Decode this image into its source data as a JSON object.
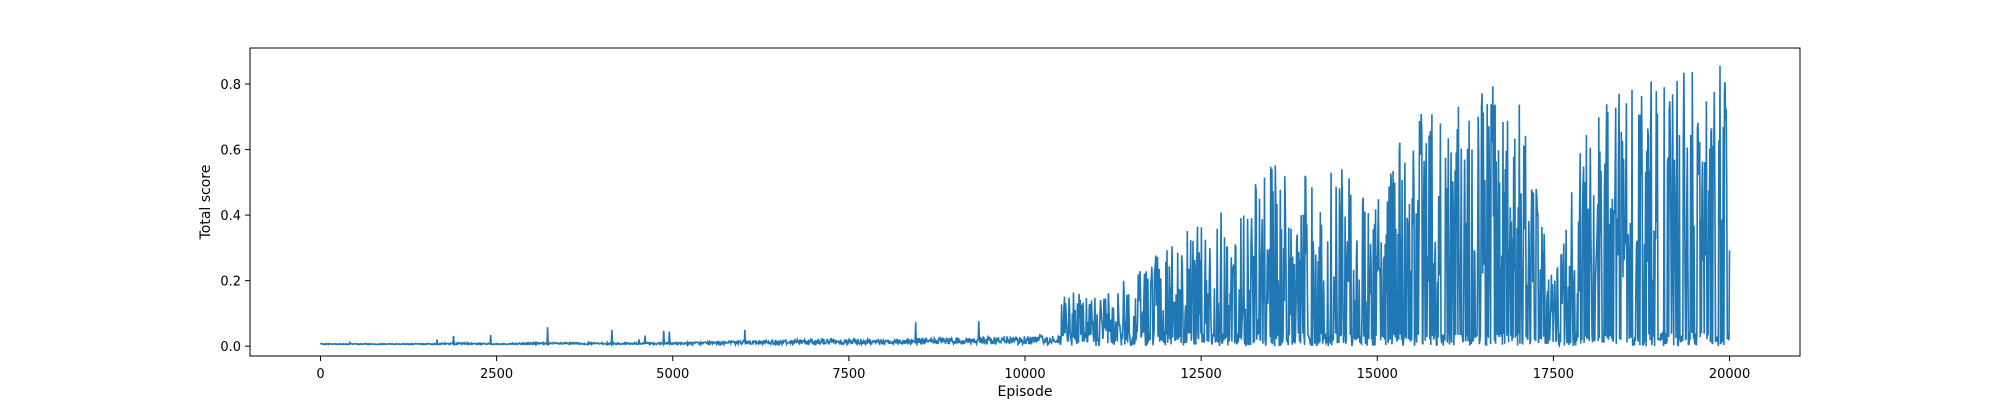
{
  "chart_data": {
    "type": "line",
    "title": "",
    "xlabel": "Episode",
    "ylabel": "Total score",
    "xlim": [
      -1000,
      21000
    ],
    "ylim": [
      -0.03,
      0.91
    ],
    "grid": false,
    "legend": "none",
    "line_color": "#1f77b4",
    "xticks": [
      0,
      2500,
      5000,
      7500,
      10000,
      12500,
      15000,
      17500,
      20000
    ],
    "xtick_labels": [
      "0",
      "2500",
      "5000",
      "7500",
      "10000",
      "12500",
      "15000",
      "17500",
      "20000"
    ],
    "yticks": [
      0.0,
      0.2,
      0.4,
      0.6,
      0.8
    ],
    "ytick_labels": [
      "0.0",
      "0.2",
      "0.4",
      "0.6",
      "0.8"
    ],
    "series": [
      {
        "x": [
          0,
          500,
          1000,
          1500,
          2000,
          2500,
          3000,
          3500,
          4000,
          4500,
          5000,
          5500,
          6000,
          6500,
          7000,
          7500,
          8000,
          8500,
          9000,
          9500,
          10000,
          10500,
          11000,
          11500,
          12000,
          12500,
          13000,
          13500,
          14000,
          14500,
          15000,
          15500,
          16000,
          16500,
          17000,
          17500,
          18000,
          18500,
          19000,
          19500,
          20000
        ],
        "y": [
          0.005,
          0.005,
          0.005,
          0.005,
          0.01,
          0.005,
          0.01,
          0.01,
          0.01,
          0.01,
          0.01,
          0.015,
          0.02,
          0.025,
          0.03,
          0.03,
          0.03,
          0.035,
          0.035,
          0.04,
          0.045,
          0.05,
          0.06,
          0.09,
          0.12,
          0.15,
          0.17,
          0.2,
          0.23,
          0.26,
          0.3,
          0.45,
          0.5,
          0.52,
          0.5,
          0.08,
          0.45,
          0.48,
          0.5,
          0.55,
          0.5
        ],
        "y_max": [
          0.035,
          0.01,
          0.04,
          0.025,
          0.05,
          0.035,
          0.07,
          0.055,
          0.075,
          0.03,
          0.06,
          0.045,
          0.08,
          0.12,
          0.145,
          0.09,
          0.08,
          0.09,
          0.09,
          0.095,
          0.1,
          0.18,
          0.15,
          0.22,
          0.31,
          0.38,
          0.43,
          0.57,
          0.52,
          0.57,
          0.47,
          0.71,
          0.77,
          0.8,
          0.79,
          0.19,
          0.75,
          0.78,
          0.83,
          0.87,
          0.86
        ]
      }
    ]
  }
}
